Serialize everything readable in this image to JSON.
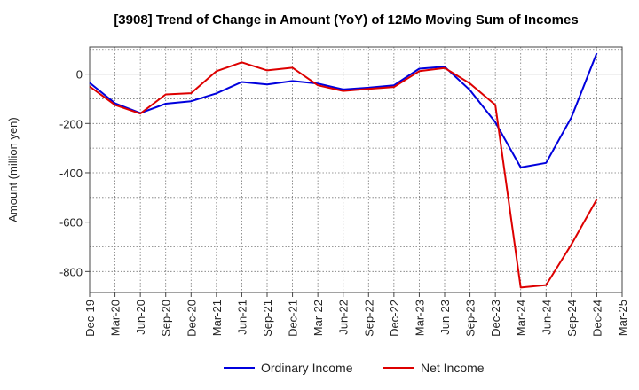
{
  "chart_data": {
    "type": "line",
    "title": "[3908]  Trend of Change in Amount (YoY) of 12Mo Moving Sum of Incomes",
    "xlabel": "",
    "ylabel": "Amount (million yen)",
    "ylim": [
      -885,
      110
    ],
    "yticks": [
      0,
      -200,
      -400,
      -600,
      -800
    ],
    "categories": [
      "Dec-19",
      "Mar-20",
      "Jun-20",
      "Sep-20",
      "Dec-20",
      "Mar-21",
      "Jun-21",
      "Sep-21",
      "Dec-21",
      "Mar-22",
      "Jun-22",
      "Sep-22",
      "Dec-22",
      "Mar-23",
      "Jun-23",
      "Sep-23",
      "Dec-23",
      "Mar-24",
      "Jun-24",
      "Sep-24",
      "Dec-24",
      "Mar-25"
    ],
    "grid": true,
    "legend_position": "bottom",
    "series": [
      {
        "name": "Ordinary Income",
        "color": "#0000dd",
        "values": [
          -35,
          -118,
          -158,
          -120,
          -110,
          -78,
          -32,
          -42,
          -28,
          -38,
          -62,
          -55,
          -45,
          22,
          30,
          -65,
          -195,
          -378,
          -360,
          -175,
          85,
          null
        ]
      },
      {
        "name": "Net Income",
        "color": "#dd0000",
        "values": [
          -50,
          -125,
          -160,
          -82,
          -77,
          12,
          48,
          15,
          26,
          -45,
          -68,
          -60,
          -52,
          12,
          25,
          -38,
          -125,
          -865,
          -855,
          -690,
          -508,
          null
        ]
      }
    ]
  }
}
